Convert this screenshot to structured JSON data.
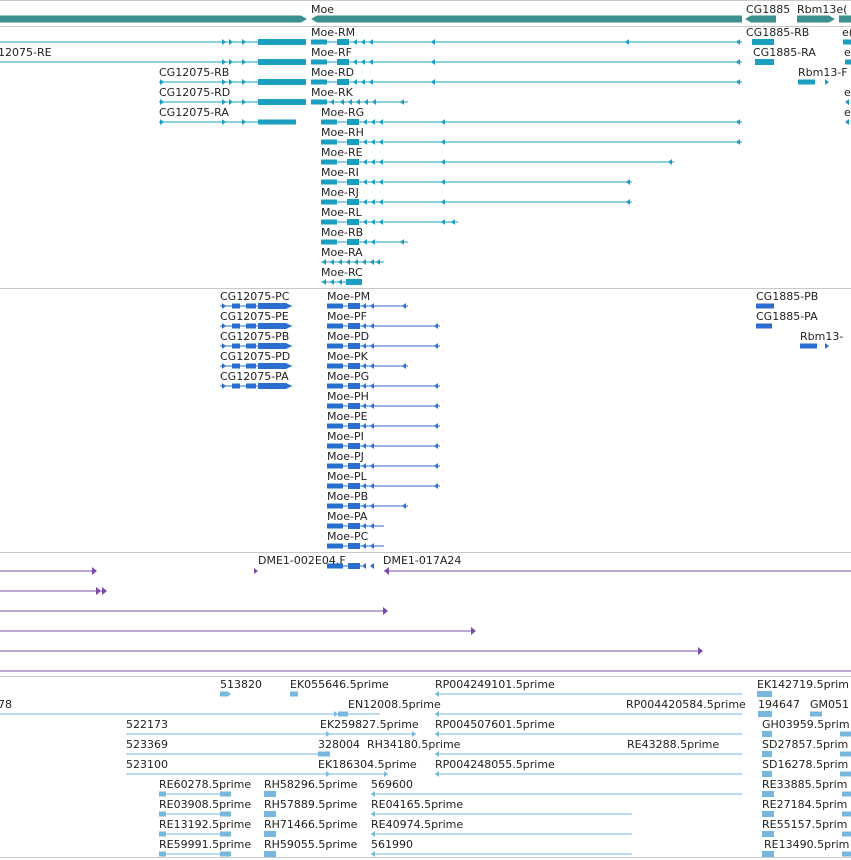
{
  "colors": {
    "gene": "#3a8f8f",
    "transcript_rna": "#1a9fc0",
    "transcript_protein": "#2a6fd0",
    "clone": "#7a4ca8",
    "est": "#78b7de",
    "separator": "#c8c8c8",
    "text": "#222222"
  },
  "tracks": {
    "genes": {
      "labels": [
        "Moe",
        "CG1885",
        "Rbm13e("
      ]
    },
    "transcripts": {
      "labels": [
        "12075-RE",
        "CG12075-RB",
        "CG12075-RD",
        "CG12075-RA",
        "Moe-RM",
        "Moe-RF",
        "Moe-RD",
        "Moe-RK",
        "Moe-RG",
        "Moe-RH",
        "Moe-RE",
        "Moe-RI",
        "Moe-RJ",
        "Moe-RL",
        "Moe-RB",
        "Moe-RA",
        "Moe-RC",
        "CG1885-RB",
        "CG1885-RA",
        "Rbm13-F",
        "e(",
        "e",
        "e",
        "e"
      ]
    },
    "proteins": {
      "labels": [
        "CG12075-PC",
        "CG12075-PE",
        "CG12075-PB",
        "CG12075-PD",
        "CG12075-PA",
        "Moe-PM",
        "Moe-PF",
        "Moe-PD",
        "Moe-PK",
        "Moe-PG",
        "Moe-PH",
        "Moe-PE",
        "Moe-PI",
        "Moe-PJ",
        "Moe-PL",
        "Moe-PB",
        "Moe-PA",
        "Moe-PC",
        "CG1885-PB",
        "CG1885-PA",
        "Rbm13-"
      ]
    },
    "clones": {
      "labels": [
        "DME1-002E04.F",
        "DME1-017A24"
      ]
    },
    "ests": {
      "labels": [
        "513820",
        "EK055646.5prime",
        "RP004249101.5prime",
        "EK142719.5prim",
        "78",
        "EN12008.5prime",
        "RP004420584.5prime",
        "194647",
        "GM051",
        "522173",
        "EK259827.5prime",
        "RP004507601.5prime",
        "GH03959.5prim",
        "523369",
        "328004",
        "RH34180.5prime",
        "RE43288.5prime",
        "SD27857.5prim",
        "523100",
        "EK186304.5prime",
        "RP004248055.5prime",
        "SD16278.5prim",
        "RE60278.5prime",
        "RH58296.5prime",
        "569600",
        "RE33885.5prim",
        "RE03908.5prime",
        "RH57889.5prime",
        "RE04165.5prime",
        "RE27184.5prim",
        "RE13192.5prime",
        "RH71466.5prime",
        "RE40974.5prime",
        "RE55157.5prim",
        "RE59991.5prime",
        "RH59055.5prime",
        "561990",
        "RE13490.5prim"
      ]
    }
  }
}
